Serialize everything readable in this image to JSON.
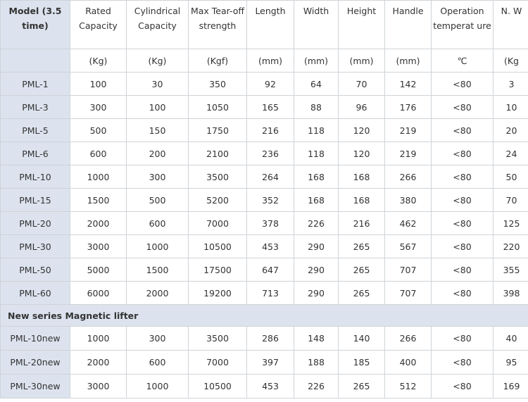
{
  "headers": [
    "Model (3.5 time)",
    "Rated Capacity",
    "Cylindrical Capacity",
    "Max Tear-off strength",
    "Length",
    "Width",
    "Height",
    "Handle",
    "Operation temperat ure",
    "N. W"
  ],
  "units": [
    "",
    "(Kg)",
    "(Kg)",
    "(Kgf)",
    "(mm)",
    "(mm)",
    "(mm)",
    "(mm)",
    "℃",
    "(Kg"
  ],
  "rows": [
    [
      "PML-1",
      "100",
      "30",
      "350",
      "92",
      "64",
      "70",
      "142",
      "<80",
      "3"
    ],
    [
      "PML-3",
      "300",
      "100",
      "1050",
      "165",
      "88",
      "96",
      "176",
      "<80",
      "10"
    ],
    [
      "PML-5",
      "500",
      "150",
      "1750",
      "216",
      "118",
      "120",
      "219",
      "<80",
      "20"
    ],
    [
      "PML-6",
      "600",
      "200",
      "2100",
      "236",
      "118",
      "120",
      "219",
      "<80",
      "24"
    ],
    [
      "PML-10",
      "1000",
      "300",
      "3500",
      "264",
      "168",
      "168",
      "266",
      "<80",
      "50"
    ],
    [
      "PML-15",
      "1500",
      "500",
      "5200",
      "352",
      "168",
      "168",
      "380",
      "<80",
      "70"
    ],
    [
      "PML-20",
      "2000",
      "600",
      "7000",
      "378",
      "226",
      "216",
      "462",
      "<80",
      "125"
    ],
    [
      "PML-30",
      "3000",
      "1000",
      "10500",
      "453",
      "290",
      "265",
      "567",
      "<80",
      "220"
    ],
    [
      "PML-50",
      "5000",
      "1500",
      "17500",
      "647",
      "290",
      "265",
      "707",
      "<80",
      "355"
    ],
    [
      "PML-60",
      "6000",
      "2000",
      "19200",
      "713",
      "290",
      "265",
      "707",
      "<80",
      "398"
    ]
  ],
  "section_title": "New series Magnetic lifter",
  "new_rows": [
    [
      "PML-10new",
      "1000",
      "300",
      "3500",
      "286",
      "148",
      "140",
      "266",
      "<80",
      "40"
    ],
    [
      "PML-20new",
      "2000",
      "600",
      "7000",
      "397",
      "188",
      "185",
      "400",
      "<80",
      "95"
    ],
    [
      "PML-30new",
      "3000",
      "1000",
      "10500",
      "453",
      "226",
      "265",
      "512",
      "<80",
      "169"
    ]
  ],
  "colors": {
    "model_column_bg": "#dce3ee",
    "border": "#cfd3d8",
    "text": "#333333"
  }
}
